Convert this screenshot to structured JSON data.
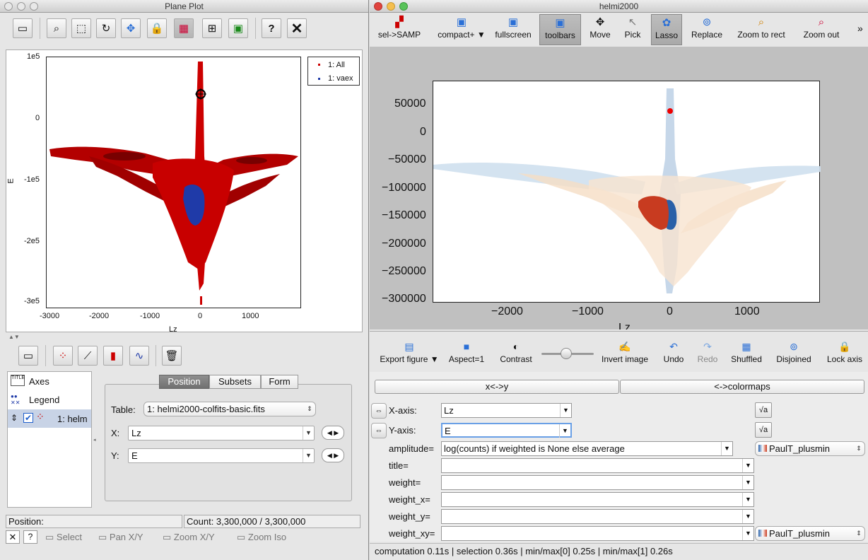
{
  "left_window": {
    "title": "Plane Plot",
    "toolbar_icons": [
      "window-icon",
      "zoom-region-icon",
      "select-region-icon",
      "rotate-icon",
      "pan-icon",
      "lock-icon",
      "density-icon",
      "axis-scale-icon",
      "export-icon",
      "help-icon",
      "close-icon"
    ],
    "legend": [
      "1: All",
      "1: vaex"
    ],
    "yticks": [
      "1e5",
      "0",
      "-1e5",
      "-2e5",
      "-3e5"
    ],
    "xticks": [
      "-3000",
      "-2000",
      "-1000",
      "0",
      "1000"
    ],
    "xlabel": "Lz",
    "ylabel": "E",
    "layers_toolbar_icons": [
      "window-icon",
      "add-scatter-icon",
      "add-line-icon",
      "add-histogram-icon",
      "add-function-icon",
      "delete-icon"
    ],
    "layers": [
      {
        "label": "Axes",
        "icon": "axes-icon"
      },
      {
        "label": "Legend",
        "icon": "legend-icon"
      },
      {
        "label": "1: helm",
        "icon": "scatter-layer-icon",
        "checked": true
      }
    ],
    "tabs": [
      "Position",
      "Subsets",
      "Form"
    ],
    "table_label": "Table:",
    "table_value": "1: helmi2000-colfits-basic.fits",
    "x_label": "X:",
    "x_value": "Lz",
    "y_label": "Y:",
    "y_value": "E",
    "position_label": "Position:",
    "count_text": "Count: 3,300,000 / 3,300,000",
    "bottom_buttons": [
      "Select",
      "Pan X/Y",
      "Zoom X/Y",
      "Zoom Iso"
    ],
    "bottom_small": [
      "✕",
      "?"
    ]
  },
  "right_window": {
    "title": "helmi2000",
    "toolbar": [
      {
        "label": "sel->SAMP",
        "icon": "samp-icon"
      },
      {
        "label": "compact+",
        "icon": "compact-icon"
      },
      {
        "label": "fullscreen",
        "icon": "fullscreen-icon"
      },
      {
        "label": "toolbars",
        "icon": "toolbars-icon",
        "active": true
      },
      {
        "label": "Move",
        "icon": "move-icon"
      },
      {
        "label": "Pick",
        "icon": "pick-icon"
      },
      {
        "label": "Lasso",
        "icon": "lasso-icon",
        "active": true
      },
      {
        "label": "Replace",
        "icon": "replace-icon"
      },
      {
        "label": "Zoom to rect",
        "icon": "zoom-rect-icon"
      },
      {
        "label": "Zoom out",
        "icon": "zoom-out-icon"
      }
    ],
    "more": "»",
    "yticks": [
      "50000",
      "0",
      "−50000",
      "−100000",
      "−150000",
      "−200000",
      "−250000",
      "−300000"
    ],
    "xticks": [
      "−2000",
      "−1000",
      "0",
      "1000"
    ],
    "xlabel": "Lz",
    "toolbar2": [
      {
        "label": "Export figure",
        "icon": "export-icon"
      },
      {
        "label": "Aspect=1",
        "icon": "aspect-icon"
      },
      {
        "label": "Contrast",
        "icon": "contrast-icon"
      },
      {
        "label": "Invert image",
        "icon": "invert-icon"
      },
      {
        "label": "Undo",
        "icon": "undo-icon"
      },
      {
        "label": "Redo",
        "icon": "redo-icon"
      },
      {
        "label": "Shuffled",
        "icon": "shuffled-icon"
      },
      {
        "label": "Disjoined",
        "icon": "disjoined-icon"
      },
      {
        "label": "Lock axis",
        "icon": "lock-icon"
      }
    ],
    "swap_button": "x<->y",
    "colormaps_button": "<->colormaps",
    "xaxis_label": "X-axis:",
    "xaxis_value": "Lz",
    "yaxis_label": "Y-axis:",
    "yaxis_value": "E",
    "amplitude_label": "amplitude=",
    "amplitude_value": "log(counts) if weighted is None else average",
    "colormap1": "PaulT_plusmin",
    "title_label": "title=",
    "weight_label": "weight=",
    "weight_x_label": "weight_x=",
    "weight_y_label": "weight_y=",
    "weight_xy_label": "weight_xy=",
    "colormap2": "PaulT_plusmin",
    "sqrt_label": "√a",
    "status": "computation 0.11s | selection 0.36s | min/max[0] 0.25s | min/max[1] 0.26s"
  }
}
